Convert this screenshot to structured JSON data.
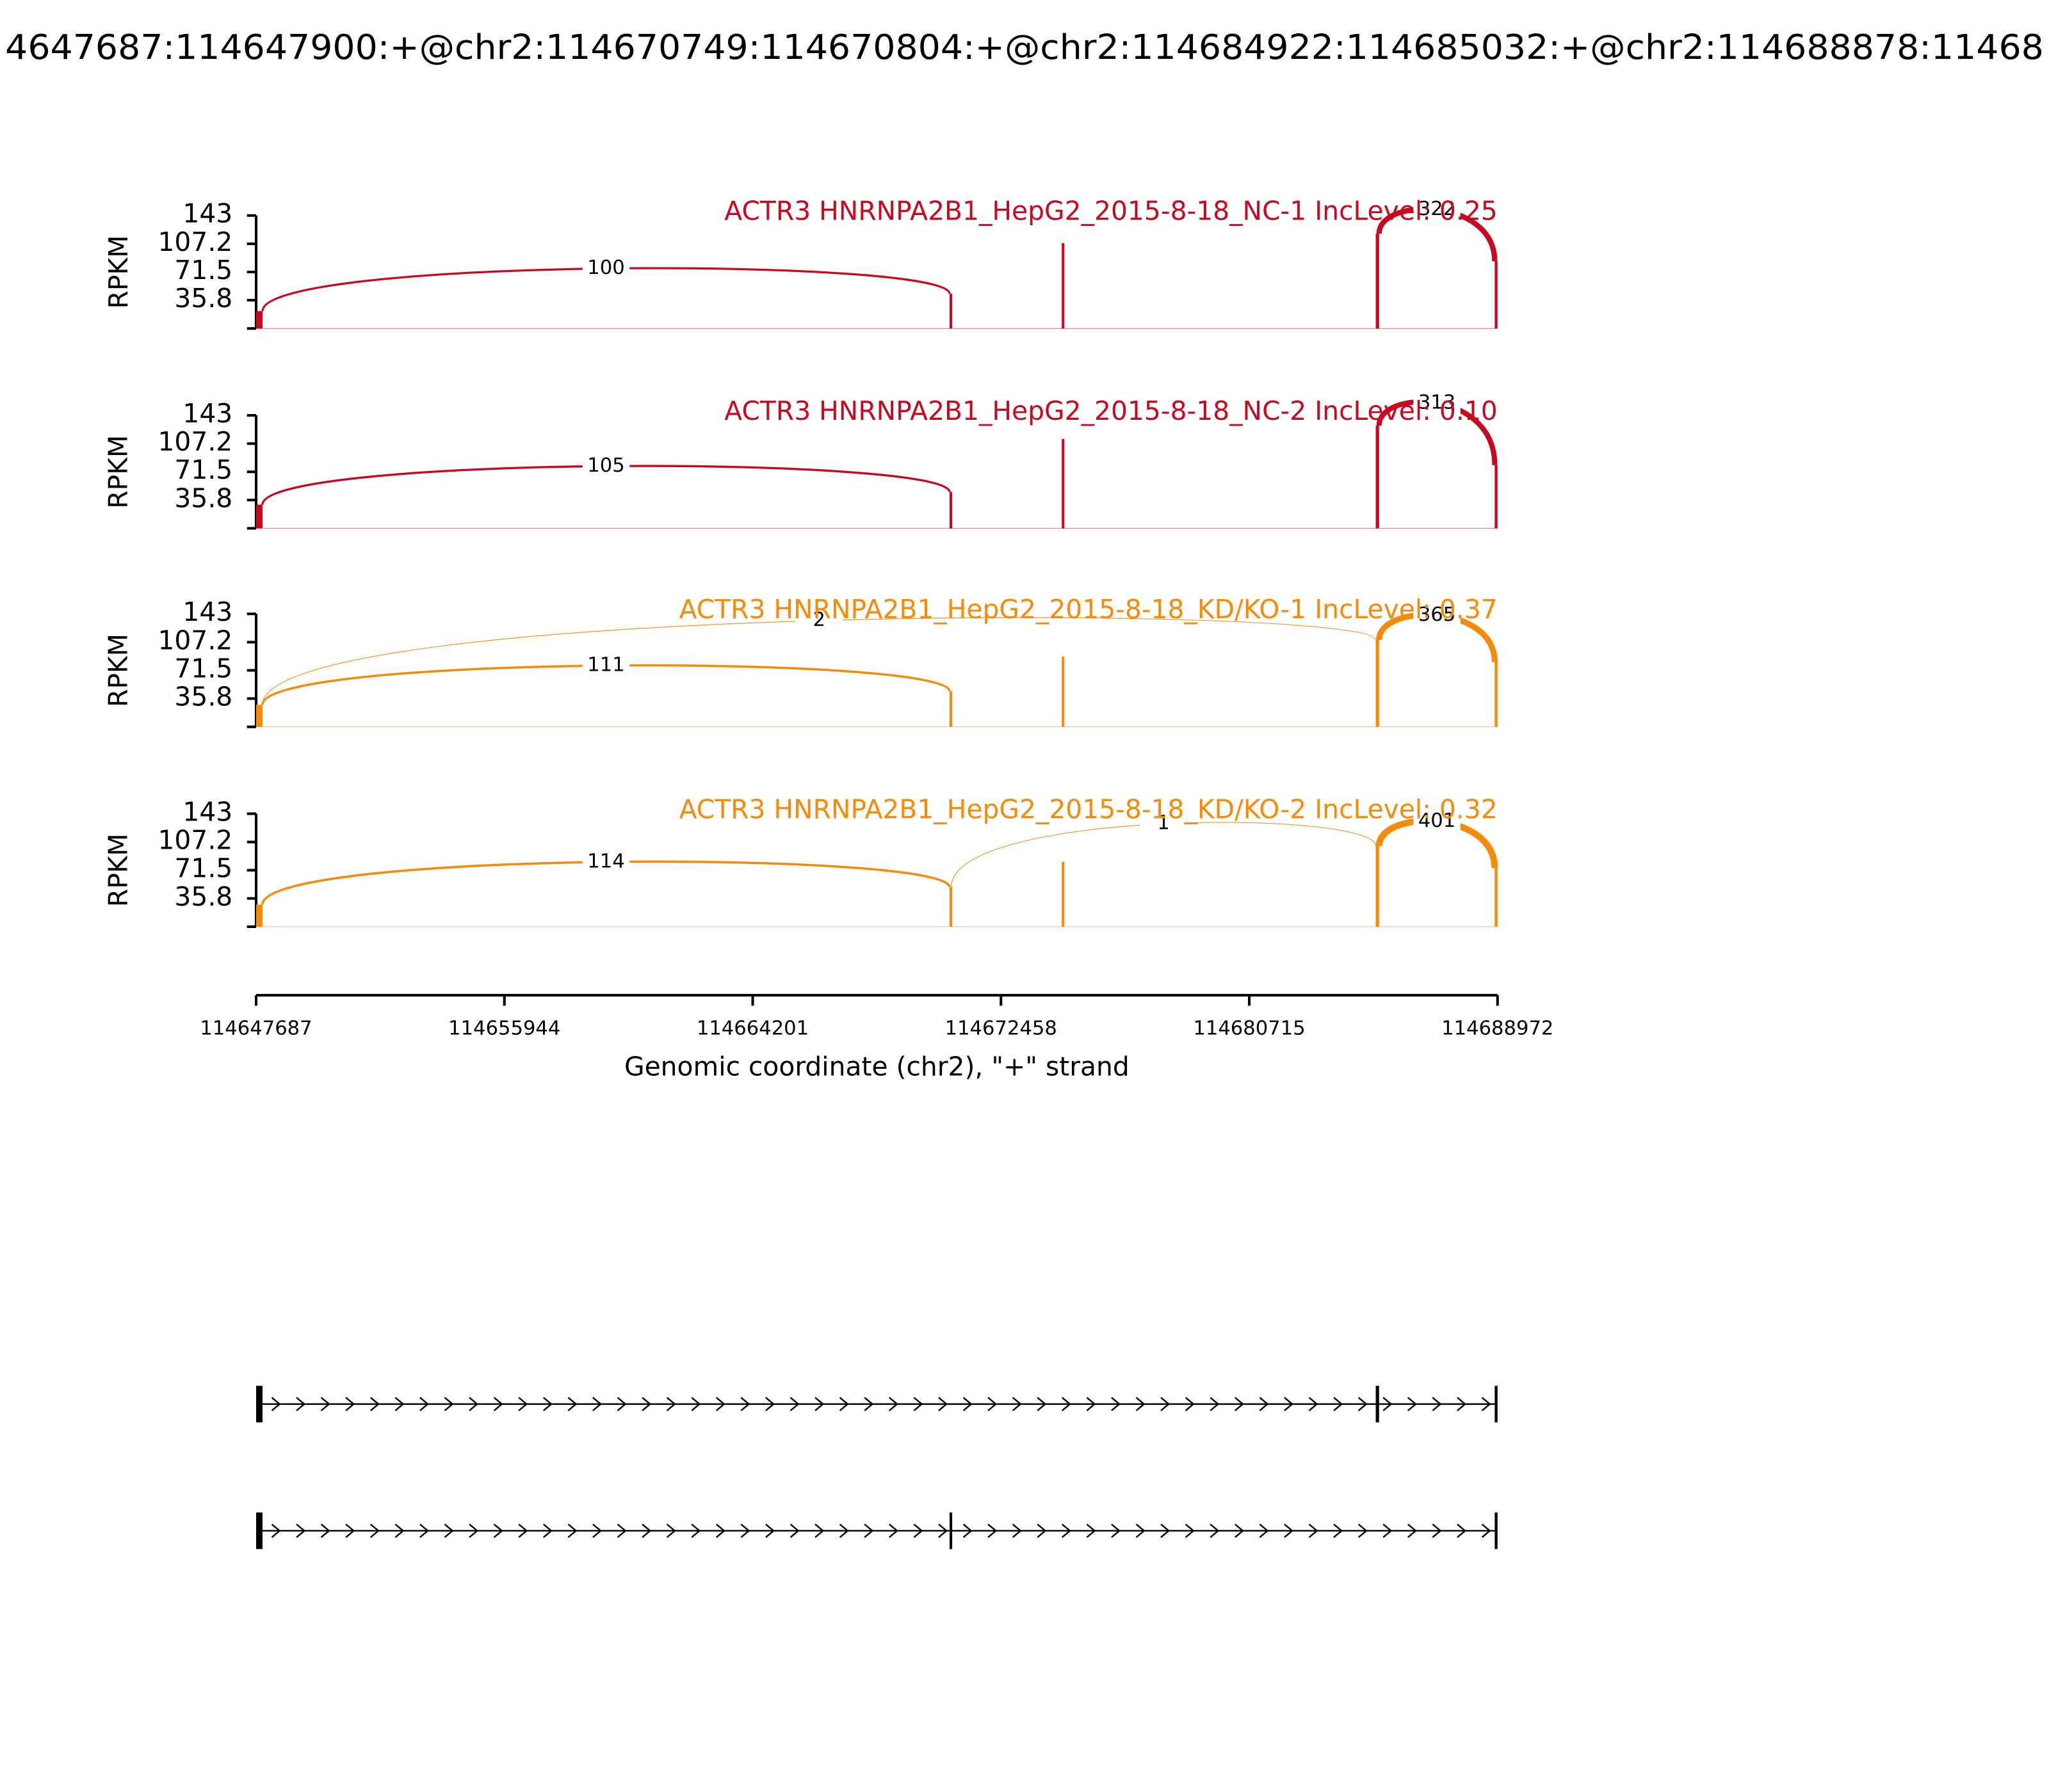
{
  "chart_data": {
    "type": "sashimi",
    "title": "4647687:114647900:+@chr2:114670749:114670804:+@chr2:114684922:114685032:+@chr2:114688878:11468",
    "ylabel": "RPKM",
    "ylim": [
      0,
      143
    ],
    "yticks": [
      35.8,
      71.5,
      107.2,
      143
    ],
    "xlim": [
      114647687,
      114688972
    ],
    "xticks": [
      114647687,
      114655944,
      114664201,
      114672458,
      114680715,
      114688972
    ],
    "xlabel": "Genomic coordinate (chr2), \"+\" strand",
    "exons": [
      [
        114647687,
        114647900
      ],
      [
        114670749,
        114670804
      ],
      [
        114674480,
        114674540
      ],
      [
        114684922,
        114685032
      ],
      [
        114688878,
        114688972
      ]
    ],
    "panels": [
      {
        "label": "ACTR3 HNRNPA2B1_HepG2_2015-8-18_NC-1 IncLevel: 0.25",
        "color": "#c8081e",
        "coverage": [
          22,
          44,
          108,
          120,
          85
        ],
        "junctions": [
          {
            "start": 114647900,
            "end": 114670749,
            "count": 100
          },
          {
            "start": 114685032,
            "end": 114688878,
            "count": 322
          }
        ]
      },
      {
        "label": "ACTR3 HNRNPA2B1_HepG2_2015-8-18_NC-2 IncLevel: 0.10",
        "color": "#c8081e",
        "coverage": [
          30,
          46,
          113,
          130,
          80
        ],
        "junctions": [
          {
            "start": 114647900,
            "end": 114670749,
            "count": 105
          },
          {
            "start": 114685032,
            "end": 114688878,
            "count": 313
          }
        ]
      },
      {
        "label": "ACTR3 HNRNPA2B1_HepG2_2015-8-18_KD/KO-1 IncLevel: 0.37",
        "color": "#f88a0a",
        "coverage": [
          28,
          45,
          89,
          110,
          82
        ],
        "junctions": [
          {
            "start": 114647900,
            "end": 114670749,
            "count": 111
          },
          {
            "start": 114647900,
            "end": 114684922,
            "count": 2
          },
          {
            "start": 114685032,
            "end": 114688878,
            "count": 365
          }
        ]
      },
      {
        "label": "ACTR3 HNRNPA2B1_HepG2_2015-8-18_KD/KO-2 IncLevel: 0.32",
        "color": "#f88a0a",
        "coverage": [
          28,
          50,
          82,
          102,
          74
        ],
        "junctions": [
          {
            "start": 114647900,
            "end": 114670749,
            "count": 114
          },
          {
            "start": 114670804,
            "end": 114684922,
            "count": 1
          },
          {
            "start": 114685032,
            "end": 114688878,
            "count": 401
          }
        ]
      }
    ],
    "transcripts": [
      {
        "exons": [
          [
            114647687,
            114647900
          ],
          [
            114684922,
            114685032
          ],
          [
            114688878,
            114688972
          ]
        ]
      },
      {
        "exons": [
          [
            114647687,
            114647900
          ],
          [
            114670749,
            114670804
          ],
          [
            114688878,
            114688972
          ]
        ]
      }
    ]
  }
}
